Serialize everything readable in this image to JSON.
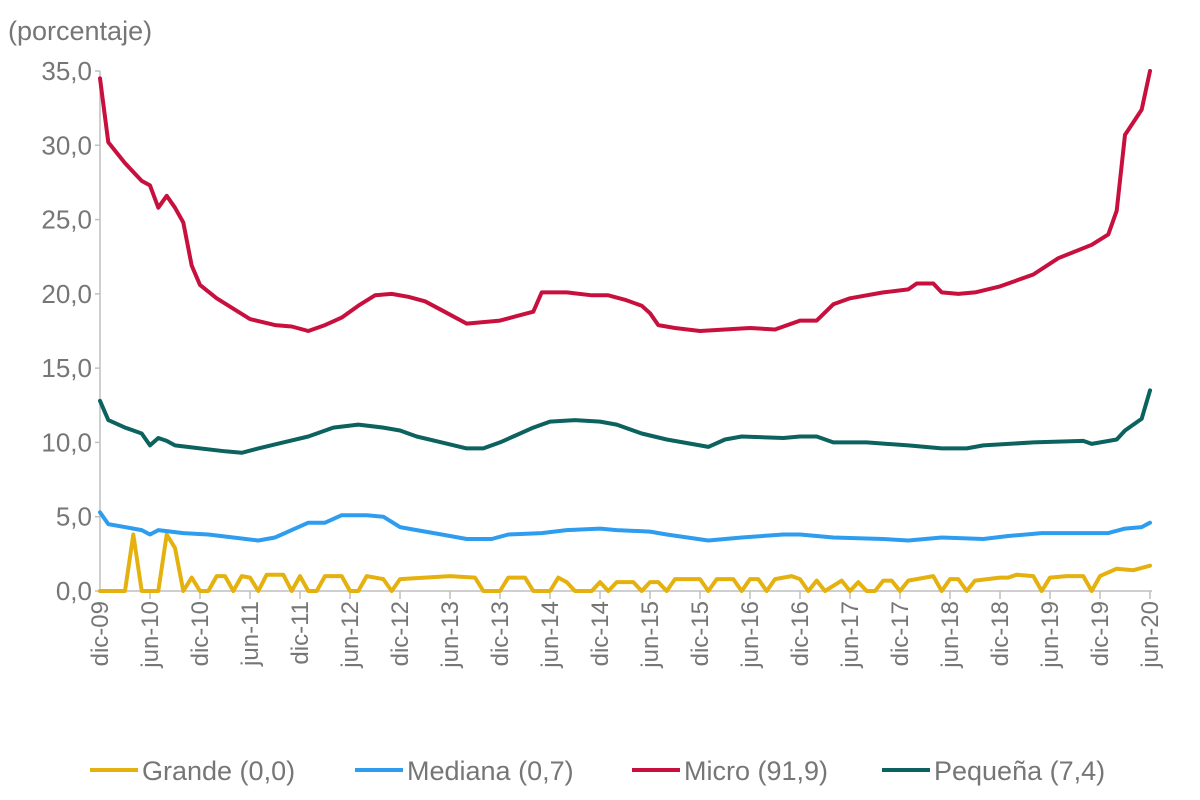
{
  "chart_data": {
    "type": "line",
    "title": "",
    "ylabel": "(porcentaje)",
    "xlabel": "",
    "ylim": [
      0,
      35
    ],
    "yticks": [
      "0,0",
      "5,0",
      "10,0",
      "15,0",
      "20,0",
      "25,0",
      "30,0",
      "35,0"
    ],
    "xrange": [
      "2009-12",
      "2020-06"
    ],
    "xticks": [
      "dic-09",
      "jun-10",
      "dic-10",
      "jun-11",
      "dic-11",
      "jun-12",
      "dic-12",
      "jun-13",
      "dic-13",
      "jun-14",
      "dic-14",
      "jun-15",
      "dic-15",
      "jun-16",
      "dic-16",
      "jun-17",
      "dic-17",
      "jun-18",
      "dic-18",
      "jun-19",
      "dic-19",
      "jun-20"
    ],
    "grid": false,
    "legend_position": "bottom",
    "series": [
      {
        "name": "Grande (0,0)",
        "color": "#E5B10E",
        "points": [
          [
            "2009-12",
            0
          ],
          [
            "2010-03",
            0
          ],
          [
            "2010-04",
            3.8
          ],
          [
            "2010-05",
            0
          ],
          [
            "2010-07",
            0
          ],
          [
            "2010-08",
            3.8
          ],
          [
            "2010-09",
            2.9
          ],
          [
            "2010-10",
            0
          ],
          [
            "2010-11",
            0.9
          ],
          [
            "2010-12",
            0
          ],
          [
            "2011-01",
            0
          ],
          [
            "2011-02",
            1.0
          ],
          [
            "2011-03",
            1.0
          ],
          [
            "2011-04",
            0
          ],
          [
            "2011-05",
            1.0
          ],
          [
            "2011-06",
            0.9
          ],
          [
            "2011-07",
            0
          ],
          [
            "2011-08",
            1.1
          ],
          [
            "2011-10",
            1.1
          ],
          [
            "2011-11",
            0
          ],
          [
            "2011-12",
            1.0
          ],
          [
            "2012-01",
            0
          ],
          [
            "2012-02",
            0
          ],
          [
            "2012-03",
            1.0
          ],
          [
            "2012-05",
            1.0
          ],
          [
            "2012-06",
            0
          ],
          [
            "2012-07",
            0
          ],
          [
            "2012-08",
            1.0
          ],
          [
            "2012-10",
            0.8
          ],
          [
            "2012-11",
            0
          ],
          [
            "2012-12",
            0.8
          ],
          [
            "2013-03",
            0.9
          ],
          [
            "2013-06",
            1.0
          ],
          [
            "2013-09",
            0.9
          ],
          [
            "2013-10",
            0
          ],
          [
            "2013-12",
            0
          ],
          [
            "2014-01",
            0.9
          ],
          [
            "2014-03",
            0.9
          ],
          [
            "2014-04",
            0
          ],
          [
            "2014-06",
            0
          ],
          [
            "2014-07",
            0.9
          ],
          [
            "2014-08",
            0.6
          ],
          [
            "2014-09",
            0
          ],
          [
            "2014-11",
            0
          ],
          [
            "2014-12",
            0.6
          ],
          [
            "2015-01",
            0
          ],
          [
            "2015-02",
            0.6
          ],
          [
            "2015-04",
            0.6
          ],
          [
            "2015-05",
            0
          ],
          [
            "2015-06",
            0.6
          ],
          [
            "2015-07",
            0.6
          ],
          [
            "2015-08",
            0
          ],
          [
            "2015-09",
            0.8
          ],
          [
            "2015-12",
            0.8
          ],
          [
            "2016-01",
            0
          ],
          [
            "2016-02",
            0.8
          ],
          [
            "2016-04",
            0.8
          ],
          [
            "2016-05",
            0
          ],
          [
            "2016-06",
            0.8
          ],
          [
            "2016-07",
            0.8
          ],
          [
            "2016-08",
            0
          ],
          [
            "2016-09",
            0.8
          ],
          [
            "2016-11",
            1.0
          ],
          [
            "2016-12",
            0.8
          ],
          [
            "2017-01",
            0
          ],
          [
            "2017-02",
            0.7
          ],
          [
            "2017-03",
            0
          ],
          [
            "2017-05",
            0.7
          ],
          [
            "2017-06",
            0
          ],
          [
            "2017-07",
            0.6
          ],
          [
            "2017-08",
            0
          ],
          [
            "2017-09",
            0
          ],
          [
            "2017-10",
            0.7
          ],
          [
            "2017-11",
            0.7
          ],
          [
            "2017-12",
            0
          ],
          [
            "2018-01",
            0.7
          ],
          [
            "2018-04",
            1.0
          ],
          [
            "2018-05",
            0
          ],
          [
            "2018-06",
            0.8
          ],
          [
            "2018-07",
            0.8
          ],
          [
            "2018-08",
            0
          ],
          [
            "2018-09",
            0.7
          ],
          [
            "2018-12",
            0.9
          ],
          [
            "2019-01",
            0.9
          ],
          [
            "2019-02",
            1.1
          ],
          [
            "2019-04",
            1.0
          ],
          [
            "2019-05",
            0
          ],
          [
            "2019-06",
            0.9
          ],
          [
            "2019-08",
            1.0
          ],
          [
            "2019-10",
            1.0
          ],
          [
            "2019-11",
            0
          ],
          [
            "2019-12",
            1.0
          ],
          [
            "2020-02",
            1.5
          ],
          [
            "2020-04",
            1.4
          ],
          [
            "2020-06",
            1.7
          ]
        ]
      },
      {
        "name": "Mediana (0,7)",
        "color": "#2E9DF0",
        "points": [
          [
            "2009-12",
            5.3
          ],
          [
            "2010-01",
            4.5
          ],
          [
            "2010-04",
            4.2
          ],
          [
            "2010-05",
            4.1
          ],
          [
            "2010-06",
            3.8
          ],
          [
            "2010-07",
            4.1
          ],
          [
            "2010-10",
            3.9
          ],
          [
            "2011-01",
            3.8
          ],
          [
            "2011-04",
            3.6
          ],
          [
            "2011-07",
            3.4
          ],
          [
            "2011-09",
            3.6
          ],
          [
            "2011-11",
            4.1
          ],
          [
            "2012-01",
            4.6
          ],
          [
            "2012-03",
            4.6
          ],
          [
            "2012-05",
            5.1
          ],
          [
            "2012-08",
            5.1
          ],
          [
            "2012-10",
            5.0
          ],
          [
            "2012-12",
            4.3
          ],
          [
            "2013-02",
            4.1
          ],
          [
            "2013-05",
            3.8
          ],
          [
            "2013-08",
            3.5
          ],
          [
            "2013-11",
            3.5
          ],
          [
            "2014-01",
            3.8
          ],
          [
            "2014-05",
            3.9
          ],
          [
            "2014-08",
            4.1
          ],
          [
            "2014-12",
            4.2
          ],
          [
            "2015-02",
            4.1
          ],
          [
            "2015-06",
            4.0
          ],
          [
            "2015-08",
            3.8
          ],
          [
            "2016-01",
            3.4
          ],
          [
            "2016-05",
            3.6
          ],
          [
            "2016-10",
            3.8
          ],
          [
            "2016-12",
            3.8
          ],
          [
            "2017-04",
            3.6
          ],
          [
            "2017-10",
            3.5
          ],
          [
            "2018-01",
            3.4
          ],
          [
            "2018-05",
            3.6
          ],
          [
            "2018-10",
            3.5
          ],
          [
            "2019-01",
            3.7
          ],
          [
            "2019-05",
            3.9
          ],
          [
            "2019-11",
            3.9
          ],
          [
            "2020-01",
            3.9
          ],
          [
            "2020-03",
            4.2
          ],
          [
            "2020-05",
            4.3
          ],
          [
            "2020-06",
            4.6
          ]
        ]
      },
      {
        "name": "Micro (91,9)",
        "color": "#C8103E",
        "points": [
          [
            "2009-12",
            34.5
          ],
          [
            "2010-01",
            30.2
          ],
          [
            "2010-02",
            29.5
          ],
          [
            "2010-03",
            28.8
          ],
          [
            "2010-04",
            28.2
          ],
          [
            "2010-05",
            27.6
          ],
          [
            "2010-06",
            27.3
          ],
          [
            "2010-07",
            25.8
          ],
          [
            "2010-08",
            26.6
          ],
          [
            "2010-09",
            25.8
          ],
          [
            "2010-10",
            24.8
          ],
          [
            "2010-11",
            21.9
          ],
          [
            "2010-12",
            20.6
          ],
          [
            "2011-02",
            19.7
          ],
          [
            "2011-04",
            19.0
          ],
          [
            "2011-06",
            18.3
          ],
          [
            "2011-09",
            17.9
          ],
          [
            "2011-11",
            17.8
          ],
          [
            "2012-01",
            17.5
          ],
          [
            "2012-03",
            17.9
          ],
          [
            "2012-05",
            18.4
          ],
          [
            "2012-07",
            19.2
          ],
          [
            "2012-09",
            19.9
          ],
          [
            "2012-11",
            20.0
          ],
          [
            "2013-01",
            19.8
          ],
          [
            "2013-03",
            19.5
          ],
          [
            "2013-05",
            18.9
          ],
          [
            "2013-08",
            18.0
          ],
          [
            "2013-10",
            18.1
          ],
          [
            "2013-12",
            18.2
          ],
          [
            "2014-02",
            18.5
          ],
          [
            "2014-04",
            18.8
          ],
          [
            "2014-05",
            20.1
          ],
          [
            "2014-08",
            20.1
          ],
          [
            "2014-11",
            19.9
          ],
          [
            "2015-01",
            19.9
          ],
          [
            "2015-03",
            19.6
          ],
          [
            "2015-05",
            19.2
          ],
          [
            "2015-06",
            18.7
          ],
          [
            "2015-07",
            17.9
          ],
          [
            "2015-09",
            17.7
          ],
          [
            "2015-12",
            17.5
          ],
          [
            "2016-03",
            17.6
          ],
          [
            "2016-06",
            17.7
          ],
          [
            "2016-09",
            17.6
          ],
          [
            "2016-12",
            18.2
          ],
          [
            "2017-02",
            18.2
          ],
          [
            "2017-04",
            19.3
          ],
          [
            "2017-06",
            19.7
          ],
          [
            "2017-10",
            20.1
          ],
          [
            "2018-01",
            20.3
          ],
          [
            "2018-02",
            20.7
          ],
          [
            "2018-04",
            20.7
          ],
          [
            "2018-05",
            20.1
          ],
          [
            "2018-07",
            20.0
          ],
          [
            "2018-09",
            20.1
          ],
          [
            "2018-12",
            20.5
          ],
          [
            "2019-04",
            21.3
          ],
          [
            "2019-07",
            22.4
          ],
          [
            "2019-11",
            23.3
          ],
          [
            "2020-01",
            24.0
          ],
          [
            "2020-02",
            25.6
          ],
          [
            "2020-03",
            30.7
          ],
          [
            "2020-05",
            32.4
          ],
          [
            "2020-06",
            35.0
          ]
        ]
      },
      {
        "name": "Pequeña (7,4)",
        "color": "#0B625E",
        "points": [
          [
            "2009-12",
            12.8
          ],
          [
            "2010-01",
            11.5
          ],
          [
            "2010-03",
            11.0
          ],
          [
            "2010-05",
            10.6
          ],
          [
            "2010-06",
            9.8
          ],
          [
            "2010-07",
            10.3
          ],
          [
            "2010-08",
            10.1
          ],
          [
            "2010-09",
            9.8
          ],
          [
            "2010-12",
            9.6
          ],
          [
            "2011-03",
            9.4
          ],
          [
            "2011-05",
            9.3
          ],
          [
            "2011-07",
            9.6
          ],
          [
            "2011-10",
            10.0
          ],
          [
            "2012-01",
            10.4
          ],
          [
            "2012-04",
            11.0
          ],
          [
            "2012-07",
            11.2
          ],
          [
            "2012-10",
            11.0
          ],
          [
            "2012-12",
            10.8
          ],
          [
            "2013-02",
            10.4
          ],
          [
            "2013-05",
            10.0
          ],
          [
            "2013-08",
            9.6
          ],
          [
            "2013-10",
            9.6
          ],
          [
            "2013-12",
            10.0
          ],
          [
            "2014-02",
            10.5
          ],
          [
            "2014-04",
            11.0
          ],
          [
            "2014-06",
            11.4
          ],
          [
            "2014-09",
            11.5
          ],
          [
            "2014-12",
            11.4
          ],
          [
            "2015-02",
            11.2
          ],
          [
            "2015-05",
            10.6
          ],
          [
            "2015-08",
            10.2
          ],
          [
            "2015-12",
            9.8
          ],
          [
            "2016-01",
            9.7
          ],
          [
            "2016-03",
            10.2
          ],
          [
            "2016-05",
            10.4
          ],
          [
            "2016-10",
            10.3
          ],
          [
            "2016-12",
            10.4
          ],
          [
            "2017-02",
            10.4
          ],
          [
            "2017-04",
            10.0
          ],
          [
            "2017-08",
            10.0
          ],
          [
            "2018-01",
            9.8
          ],
          [
            "2018-05",
            9.6
          ],
          [
            "2018-08",
            9.6
          ],
          [
            "2018-10",
            9.8
          ],
          [
            "2019-04",
            10.0
          ],
          [
            "2019-10",
            10.1
          ],
          [
            "2019-11",
            9.9
          ],
          [
            "2020-02",
            10.2
          ],
          [
            "2020-03",
            10.8
          ],
          [
            "2020-05",
            11.6
          ],
          [
            "2020-06",
            13.5
          ]
        ]
      }
    ]
  }
}
